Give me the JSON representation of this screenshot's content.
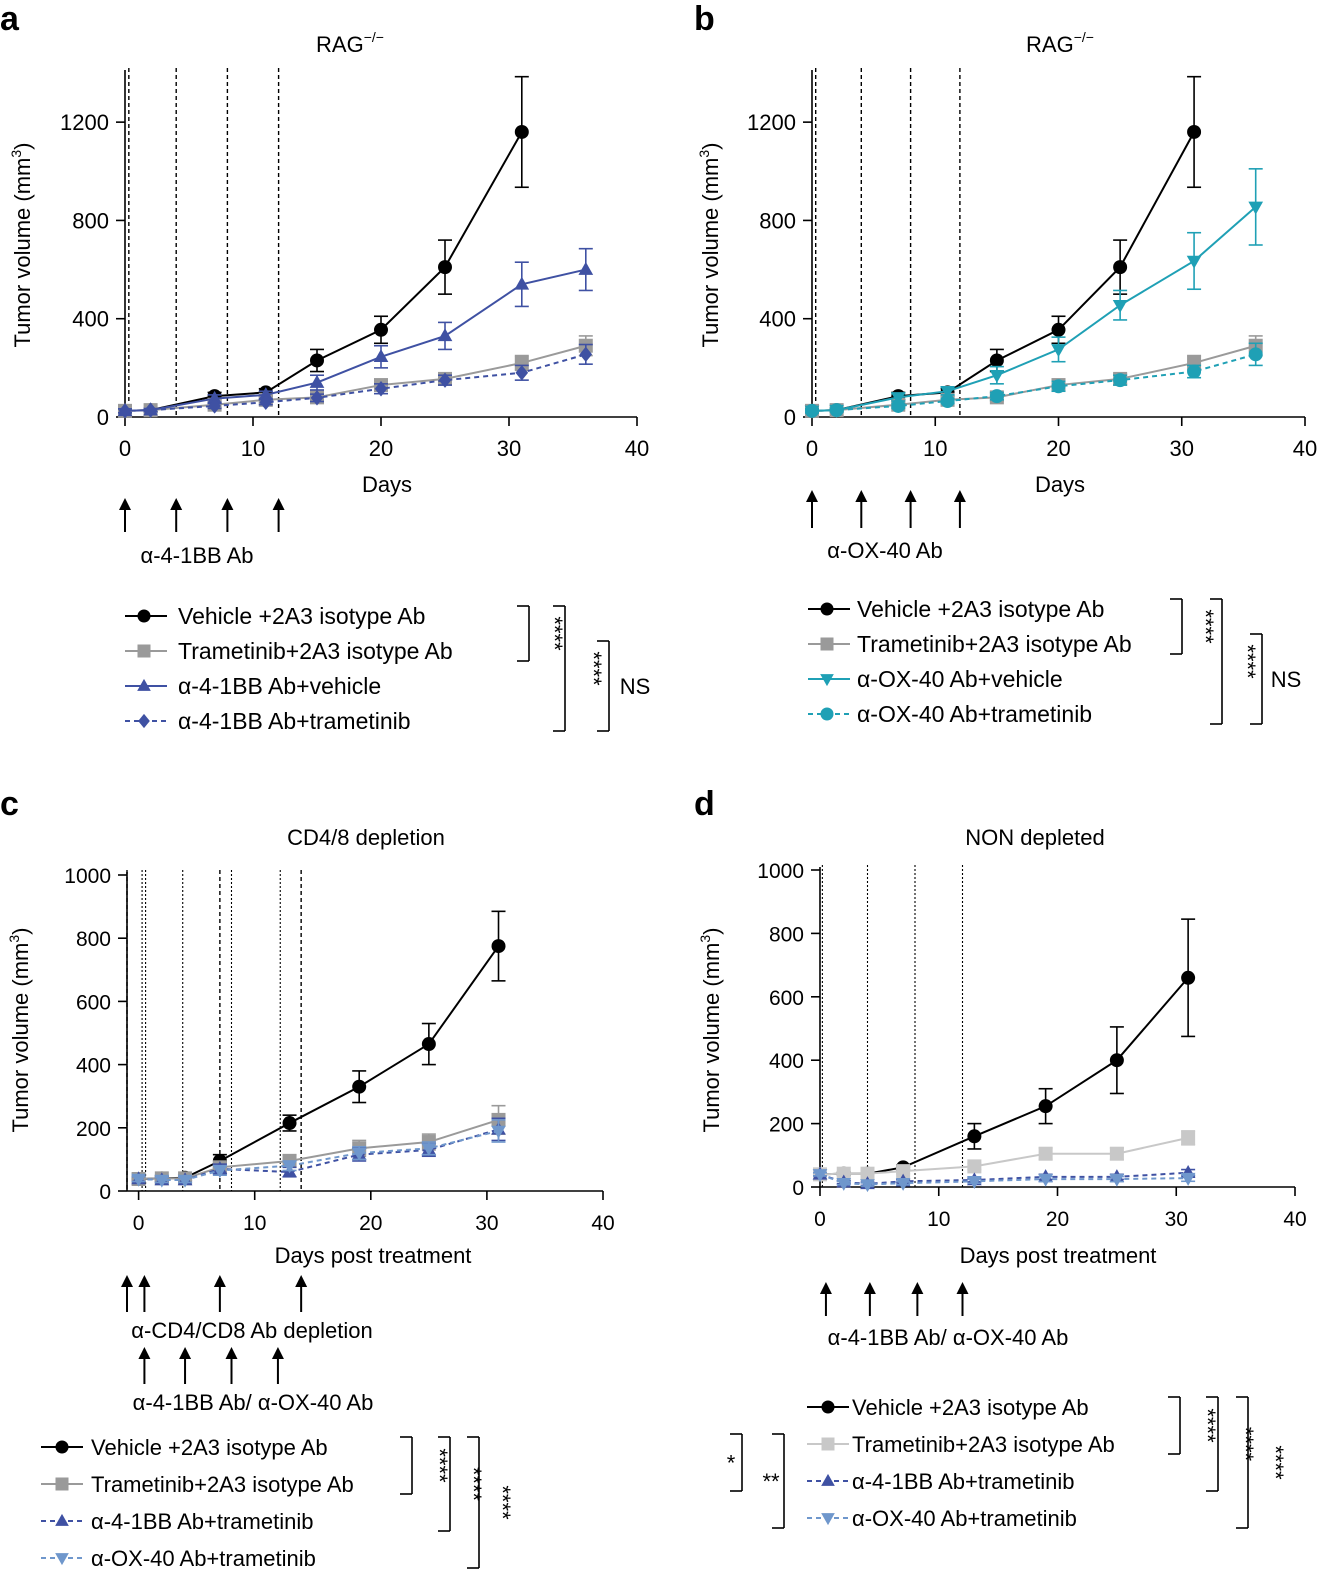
{
  "colors": {
    "black": "#000000",
    "gray": "#9a9a9a",
    "lightgray": "#c8c8c8",
    "blue": "#3f51a3",
    "teal": "#1fa0b5",
    "lightblue": "#6f97cc"
  },
  "panels": [
    {
      "letter": "a",
      "chart_data": {
        "type": "line",
        "title_main": "RAG",
        "title_sup": "−/−",
        "xlabel": "Days",
        "ylabel_main": "Tumor volume (mm",
        "ylabel_sup": "3",
        "ylabel_end": ")",
        "xlim": [
          0,
          40
        ],
        "ylim": [
          0,
          1400
        ],
        "xticks": [
          0,
          10,
          20,
          30,
          40
        ],
        "yticks": [
          0,
          400,
          800,
          1200
        ],
        "vlines": [
          {
            "x": 0.3,
            "style": "dash"
          },
          {
            "x": 4,
            "style": "dash"
          },
          {
            "x": 8,
            "style": "dash"
          },
          {
            "x": 12,
            "style": "dash"
          }
        ],
        "series": [
          {
            "name": "Vehicle +2A3 isotype Ab",
            "color": "black",
            "marker": "circle",
            "dashed": false,
            "x": [
              0,
              2,
              7,
              11,
              15,
              20,
              25,
              31
            ],
            "y": [
              25,
              28,
              85,
              100,
              230,
              355,
              610,
              1160
            ],
            "err": [
              10,
              8,
              15,
              15,
              45,
              55,
              110,
              225
            ]
          },
          {
            "name": "Trametinib+2A3 isotype Ab",
            "color": "gray",
            "marker": "square",
            "dashed": false,
            "x": [
              0,
              2,
              7,
              11,
              15,
              20,
              25,
              31,
              36
            ],
            "y": [
              25,
              28,
              50,
              70,
              80,
              130,
              155,
              220,
              290
            ],
            "err": [
              8,
              6,
              10,
              12,
              15,
              20,
              20,
              30,
              40
            ]
          },
          {
            "name": "α-4-1BB Ab+vehicle",
            "color": "blue",
            "marker": "triangle",
            "dashed": false,
            "x": [
              0,
              2,
              7,
              11,
              15,
              20,
              25,
              31,
              36
            ],
            "y": [
              25,
              28,
              75,
              90,
              140,
              245,
              330,
              540,
              600
            ],
            "err": [
              8,
              6,
              15,
              15,
              30,
              45,
              55,
              90,
              85
            ]
          },
          {
            "name": "α-4-1BB Ab+trametinib",
            "color": "blue",
            "marker": "diamond",
            "dashed": true,
            "x": [
              0,
              2,
              7,
              11,
              15,
              20,
              25,
              31,
              36
            ],
            "y": [
              25,
              28,
              45,
              60,
              78,
              115,
              150,
              180,
              255
            ],
            "err": [
              8,
              6,
              10,
              10,
              15,
              20,
              20,
              30,
              40
            ]
          }
        ],
        "arrow_groups": [
          {
            "x": [
              0,
              4,
              8,
              12
            ],
            "label": "α-4-1BB Ab"
          }
        ],
        "brackets": [
          {
            "rows": [
              0,
              1
            ],
            "col": 0,
            "label": "****"
          },
          {
            "rows": [
              0,
              3
            ],
            "col": 1,
            "label": "****"
          },
          {
            "rows": [
              1,
              3
            ],
            "col": 2,
            "label": "NS"
          }
        ]
      }
    },
    {
      "letter": "b",
      "chart_data": {
        "type": "line",
        "title_main": "RAG",
        "title_sup": "−/−",
        "xlabel": "Days",
        "ylabel_main": "Tumor volume (mm",
        "ylabel_sup": "3",
        "ylabel_end": ")",
        "xlim": [
          0,
          40
        ],
        "ylim": [
          0,
          1400
        ],
        "xticks": [
          0,
          10,
          20,
          30,
          40
        ],
        "yticks": [
          0,
          400,
          800,
          1200
        ],
        "vlines": [
          {
            "x": 0.3,
            "style": "dash"
          },
          {
            "x": 4,
            "style": "dash"
          },
          {
            "x": 8,
            "style": "dash"
          },
          {
            "x": 12,
            "style": "dash"
          }
        ],
        "series": [
          {
            "name": "Vehicle +2A3 isotype Ab",
            "color": "black",
            "marker": "circle",
            "dashed": false,
            "x": [
              0,
              2,
              7,
              11,
              15,
              20,
              25,
              31
            ],
            "y": [
              25,
              28,
              85,
              100,
              230,
              355,
              610,
              1160
            ],
            "err": [
              10,
              8,
              15,
              15,
              45,
              55,
              110,
              225
            ]
          },
          {
            "name": "Trametinib+2A3 isotype Ab",
            "color": "gray",
            "marker": "square",
            "dashed": false,
            "x": [
              0,
              2,
              7,
              11,
              15,
              20,
              25,
              31,
              36
            ],
            "y": [
              25,
              28,
              50,
              70,
              80,
              130,
              155,
              220,
              290
            ],
            "err": [
              8,
              6,
              10,
              12,
              15,
              20,
              20,
              30,
              40
            ]
          },
          {
            "name": "α-OX-40 Ab+vehicle",
            "color": "teal",
            "marker": "triangle-down",
            "dashed": false,
            "x": [
              0,
              2,
              7,
              11,
              15,
              20,
              25,
              31,
              36
            ],
            "y": [
              25,
              28,
              80,
              105,
              170,
              275,
              455,
              635,
              855
            ],
            "err": [
              8,
              6,
              15,
              15,
              35,
              50,
              60,
              115,
              155
            ]
          },
          {
            "name": "α-OX-40 Ab+trametinib",
            "color": "teal",
            "marker": "circle",
            "dashed": true,
            "x": [
              0,
              2,
              7,
              11,
              15,
              20,
              25,
              31,
              36
            ],
            "y": [
              25,
              28,
              45,
              65,
              85,
              125,
              150,
              185,
              255
            ],
            "err": [
              8,
              6,
              10,
              10,
              15,
              20,
              20,
              25,
              45
            ]
          }
        ],
        "arrow_groups": [
          {
            "x": [
              0,
              4,
              8,
              12
            ],
            "label": "α-OX-40 Ab"
          }
        ],
        "brackets": [
          {
            "rows": [
              0,
              1
            ],
            "col": 0,
            "label": "****"
          },
          {
            "rows": [
              0,
              3
            ],
            "col": 1,
            "label": "****"
          },
          {
            "rows": [
              1,
              3
            ],
            "col": 2,
            "label": "NS"
          }
        ]
      }
    },
    {
      "letter": "c",
      "chart_data": {
        "type": "line",
        "title_main": "CD4/8 depletion",
        "title_sup": "",
        "xlabel": "Days post treatment",
        "ylabel_main": "Tumor volume (mm",
        "ylabel_sup": "3",
        "ylabel_end": ")",
        "xlim": [
          -1,
          40
        ],
        "ylim": [
          0,
          1000
        ],
        "xticks": [
          0,
          10,
          20,
          30,
          40
        ],
        "yticks": [
          0,
          200,
          400,
          600,
          800,
          1000
        ],
        "vlines": [
          {
            "x": -1,
            "style": "dash"
          },
          {
            "x": 0.3,
            "style": "dot"
          },
          {
            "x": 0.6,
            "style": "dot"
          },
          {
            "x": 3.8,
            "style": "dot"
          },
          {
            "x": 7,
            "style": "dash"
          },
          {
            "x": 8,
            "style": "dot"
          },
          {
            "x": 12.2,
            "style": "dot"
          },
          {
            "x": 14,
            "style": "dash"
          }
        ],
        "series": [
          {
            "name": "Vehicle +2A3 isotype Ab",
            "color": "black",
            "marker": "circle",
            "dashed": false,
            "x": [
              0,
              2,
              4,
              7,
              13,
              19,
              25,
              31
            ],
            "y": [
              38,
              40,
              42,
              95,
              215,
              330,
              465,
              775
            ],
            "err": [
              8,
              8,
              8,
              20,
              25,
              50,
              65,
              110
            ]
          },
          {
            "name": "Trametinib+2A3 isotype Ab",
            "color": "gray",
            "marker": "square",
            "dashed": false,
            "x": [
              0,
              2,
              4,
              7,
              13,
              19,
              25,
              31
            ],
            "y": [
              38,
              40,
              40,
              75,
              95,
              135,
              155,
              225
            ],
            "err": [
              8,
              8,
              8,
              15,
              20,
              25,
              25,
              45
            ]
          },
          {
            "name": "α-4-1BB Ab+trametinib",
            "color": "blue",
            "marker": "triangle",
            "dashed": true,
            "x": [
              0,
              2,
              4,
              7,
              13,
              19,
              25,
              31
            ],
            "y": [
              38,
              35,
              35,
              70,
              60,
              115,
              130,
              195
            ],
            "err": [
              8,
              8,
              8,
              15,
              15,
              20,
              20,
              35
            ]
          },
          {
            "name": "α-OX-40 Ab+trametinib",
            "color": "lightblue",
            "marker": "triangle-down",
            "dashed": true,
            "x": [
              0,
              2,
              4,
              7,
              13,
              19,
              25,
              31
            ],
            "y": [
              38,
              35,
              35,
              65,
              80,
              120,
              135,
              190
            ],
            "err": [
              8,
              8,
              8,
              15,
              15,
              20,
              20,
              35
            ]
          }
        ],
        "arrow_groups": [
          {
            "x": [
              -1,
              0.5,
              7,
              14
            ],
            "label": "α-CD4/CD8 Ab depletion"
          },
          {
            "x": [
              0.5,
              4,
              8,
              12
            ],
            "label": "α-4-1BB Ab/ α-OX-40 Ab"
          }
        ],
        "brackets": [
          {
            "rows": [
              0,
              1
            ],
            "col": 0,
            "label": "****"
          },
          {
            "rows": [
              0,
              2
            ],
            "col": 1,
            "label": "****"
          },
          {
            "rows": [
              0,
              3
            ],
            "col": 2,
            "label": "****"
          }
        ]
      }
    },
    {
      "letter": "d",
      "chart_data": {
        "type": "line",
        "title_main": "NON depleted",
        "title_sup": "",
        "xlabel": "Days post treatment",
        "ylabel_main": "Tumor volume (mm",
        "ylabel_sup": "3",
        "ylabel_end": ")",
        "xlim": [
          0,
          40
        ],
        "ylim": [
          0,
          1000
        ],
        "xticks": [
          0,
          10,
          20,
          30,
          40
        ],
        "yticks": [
          0,
          200,
          400,
          600,
          800,
          1000
        ],
        "vlines": [
          {
            "x": 0.2,
            "style": "dot"
          },
          {
            "x": 4,
            "style": "dot"
          },
          {
            "x": 8,
            "style": "dot"
          },
          {
            "x": 12,
            "style": "dot"
          }
        ],
        "series": [
          {
            "name": "Vehicle +2A3 isotype Ab",
            "color": "black",
            "marker": "circle",
            "dashed": false,
            "x": [
              0,
              2,
              4,
              7,
              13,
              19,
              25,
              31
            ],
            "y": [
              40,
              42,
              42,
              62,
              160,
              255,
              400,
              660
            ],
            "err": [
              5,
              5,
              5,
              8,
              40,
              55,
              105,
              185
            ]
          },
          {
            "name": "Trametinib+2A3 isotype Ab",
            "color": "lightgray",
            "marker": "square",
            "dashed": false,
            "x": [
              0,
              2,
              4,
              7,
              13,
              19,
              25,
              31
            ],
            "y": [
              40,
              42,
              42,
              50,
              65,
              105,
              105,
              155
            ],
            "err": [
              5,
              5,
              5,
              8,
              10,
              18,
              18,
              22
            ]
          },
          {
            "name": "α-4-1BB Ab+trametinib",
            "color": "blue",
            "marker": "triangle",
            "dashed": true,
            "x": [
              0,
              2,
              4,
              7,
              13,
              19,
              25,
              31
            ],
            "y": [
              40,
              15,
              10,
              18,
              22,
              32,
              32,
              45
            ],
            "err": [
              5,
              5,
              5,
              5,
              6,
              8,
              8,
              10
            ]
          },
          {
            "name": "α-OX-40 Ab+trametinib",
            "color": "lightblue",
            "marker": "triangle-down",
            "dashed": true,
            "x": [
              0,
              2,
              4,
              7,
              13,
              19,
              25,
              31
            ],
            "y": [
              40,
              12,
              8,
              12,
              18,
              25,
              25,
              28
            ],
            "err": [
              5,
              5,
              5,
              5,
              6,
              8,
              8,
              10
            ]
          }
        ],
        "arrow_groups": [
          {
            "x": [
              0.5,
              4.2,
              8.2,
              12
            ],
            "label": "α-4-1BB Ab/ α-OX-40 Ab"
          }
        ],
        "brackets": [
          {
            "rows": [
              0,
              1
            ],
            "col": 0,
            "label": "****"
          },
          {
            "rows": [
              0,
              2
            ],
            "col": 1,
            "label": "****"
          },
          {
            "rows": [
              0,
              3
            ],
            "col": 2,
            "label": "****"
          },
          {
            "rows": [
              1,
              2
            ],
            "col": -1,
            "label": "*"
          },
          {
            "rows": [
              1,
              3
            ],
            "col": -2,
            "label": "**"
          }
        ]
      }
    }
  ]
}
